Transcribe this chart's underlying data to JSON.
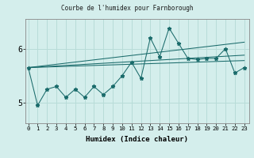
{
  "title": "Courbe de l'humidex pour Farnborough",
  "xlabel": "Humidex (Indice chaleur)",
  "bg_color": "#d4eeec",
  "line_color": "#1a6b6b",
  "grid_color": "#b8dcd8",
  "x_ticks": [
    0,
    1,
    2,
    3,
    4,
    5,
    6,
    7,
    8,
    9,
    10,
    11,
    12,
    13,
    14,
    15,
    16,
    17,
    18,
    19,
    20,
    21,
    22,
    23
  ],
  "y_ticks": [
    5,
    6
  ],
  "ylim": [
    4.62,
    6.55
  ],
  "xlim": [
    -0.3,
    23.5
  ],
  "humidex": [
    5.65,
    4.95,
    5.25,
    5.3,
    5.1,
    5.25,
    5.1,
    5.3,
    5.15,
    5.3,
    5.5,
    5.75,
    5.45,
    6.2,
    5.85,
    6.38,
    6.1,
    5.82,
    5.8,
    5.82,
    5.82,
    6.0,
    5.55,
    5.65
  ],
  "fan_origin_x": 0,
  "fan_origin_y": 5.65,
  "fan_lines": [
    {
      "end_x": 23,
      "end_y": 5.88
    },
    {
      "end_x": 23,
      "end_y": 5.78
    },
    {
      "end_x": 23,
      "end_y": 6.12
    }
  ]
}
